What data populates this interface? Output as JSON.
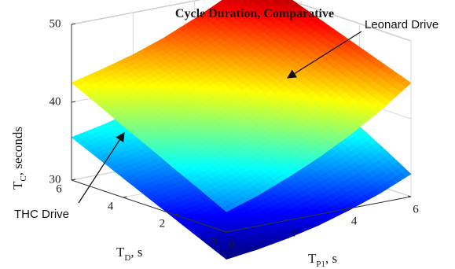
{
  "chart_data": {
    "type": "surface",
    "title": "Cycle Duration, Comparative",
    "axes": {
      "x": {
        "label": "T",
        "sub": "P1",
        "unit": ", s",
        "range": [
          0,
          6
        ],
        "ticks": [
          "0",
          "2",
          "4",
          "6"
        ]
      },
      "y": {
        "label": "T",
        "sub": "D",
        "unit": ", s",
        "range": [
          0,
          6
        ],
        "ticks": [
          "0",
          "2",
          "4",
          "6"
        ]
      },
      "z": {
        "label": "T",
        "sub": "C",
        "unit": ", seconds",
        "range": [
          30,
          50
        ],
        "ticks": [
          "30",
          "40",
          "50"
        ]
      }
    },
    "grid": true,
    "colormap": "jet",
    "series": [
      {
        "name": "Leonard Drive",
        "x": [
          0,
          1,
          2,
          3,
          4,
          5,
          6
        ],
        "y": [
          0,
          1,
          2,
          3,
          4,
          5,
          6
        ],
        "z": [
          [
            32.6,
            33.9,
            35.5,
            37.3,
            39.4,
            41.8,
            44.6
          ],
          [
            34.3,
            35.5,
            37.0,
            38.8,
            40.8,
            43.1,
            45.8
          ],
          [
            35.9,
            37.1,
            38.5,
            40.2,
            42.2,
            44.5,
            47.0
          ],
          [
            37.6,
            38.7,
            40.0,
            41.7,
            43.6,
            45.8,
            48.2
          ],
          [
            39.2,
            40.3,
            41.6,
            43.1,
            44.9,
            47.1,
            49.4
          ],
          [
            40.9,
            41.9,
            43.1,
            44.6,
            46.3,
            48.4,
            50.6
          ],
          [
            42.5,
            43.5,
            44.6,
            46.0,
            47.7,
            49.6,
            51.7
          ]
        ]
      },
      {
        "name": "THC Drive",
        "x": [
          0,
          1,
          2,
          3,
          4,
          5,
          6
        ],
        "y": [
          0,
          1,
          2,
          3,
          4,
          5,
          6
        ],
        "z": [
          [
            26.5,
            27.0,
            27.7,
            28.6,
            29.8,
            31.2,
            32.9
          ],
          [
            28.0,
            28.6,
            29.4,
            30.4,
            31.7,
            33.2,
            34.9
          ],
          [
            29.5,
            30.2,
            31.0,
            32.1,
            33.4,
            35.0,
            36.8
          ],
          [
            31.0,
            31.7,
            32.6,
            33.8,
            35.2,
            36.8,
            38.6
          ],
          [
            32.5,
            33.3,
            34.3,
            35.5,
            36.9,
            38.5,
            40.3
          ],
          [
            34.0,
            34.8,
            35.8,
            37.0,
            38.5,
            40.1,
            41.9
          ],
          [
            35.5,
            36.3,
            37.3,
            38.5,
            40.0,
            41.6,
            43.4
          ]
        ]
      }
    ],
    "annotations": [
      {
        "text": "Leonard Drive",
        "target_series": "Leonard Drive"
      },
      {
        "text": "THC Drive",
        "target_series": "THC Drive"
      }
    ]
  }
}
